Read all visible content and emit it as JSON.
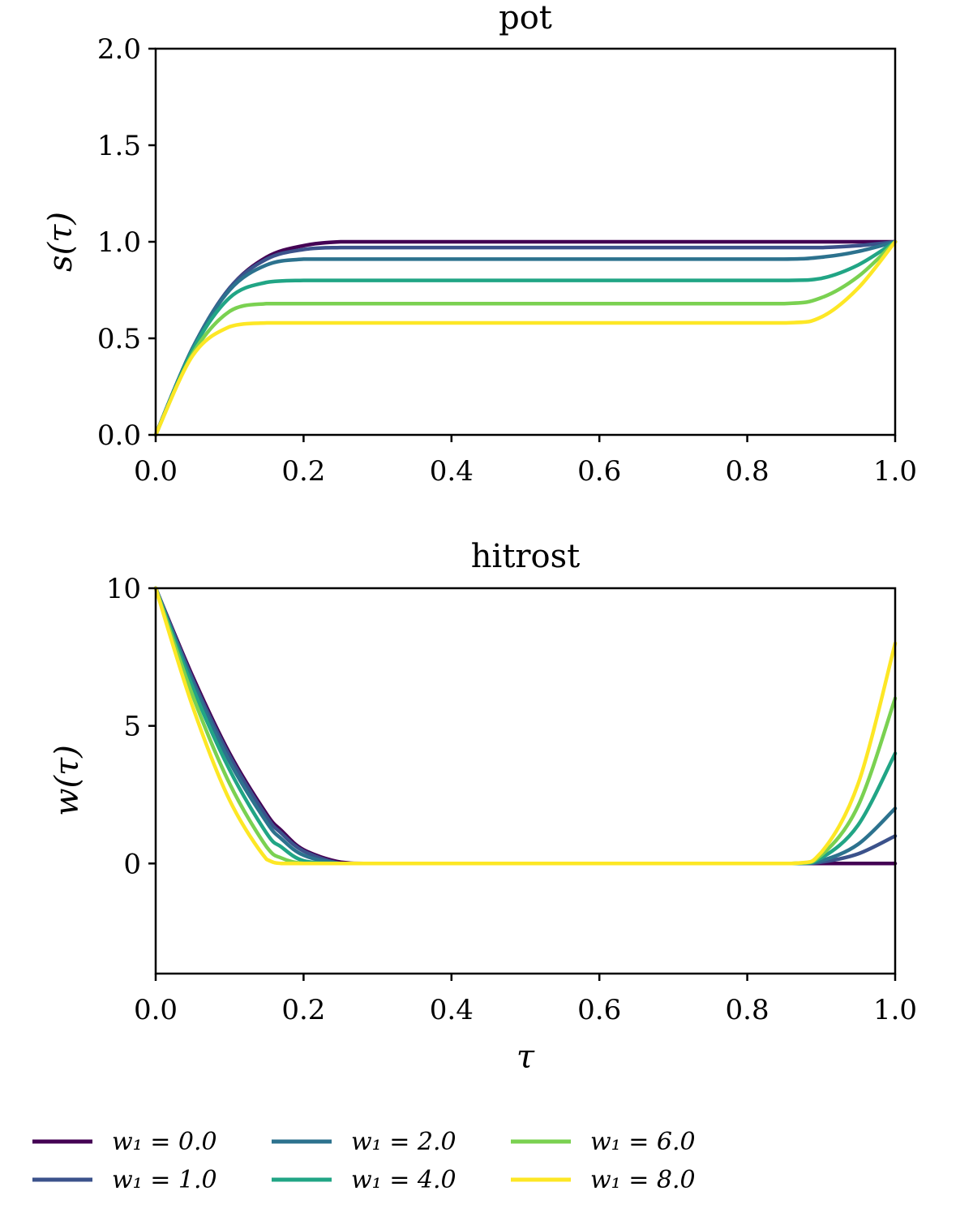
{
  "chart_data": [
    {
      "type": "line",
      "title": "pot",
      "xlabel": "",
      "ylabel": "s(τ)",
      "xlim": [
        0,
        1
      ],
      "ylim": [
        0,
        2
      ],
      "xticks": [
        "0.0",
        "0.2",
        "0.4",
        "0.6",
        "0.8",
        "1.0"
      ],
      "yticks": [
        "0.0",
        "0.5",
        "1.0",
        "1.5",
        "2.0"
      ],
      "x": [
        0.0,
        0.05,
        0.1,
        0.15,
        0.2,
        0.25,
        0.3,
        0.5,
        0.7,
        0.85,
        0.9,
        0.95,
        1.0
      ],
      "series": [
        {
          "name": "w₁ = 0.0",
          "color": "#440154",
          "values": [
            0.0,
            0.45,
            0.76,
            0.92,
            0.98,
            1.0,
            1.0,
            1.0,
            1.0,
            1.0,
            1.0,
            1.0,
            1.0
          ]
        },
        {
          "name": "w₁ = 1.0",
          "color": "#3b528b",
          "values": [
            0.0,
            0.45,
            0.76,
            0.91,
            0.96,
            0.97,
            0.97,
            0.97,
            0.97,
            0.97,
            0.97,
            0.98,
            1.0
          ]
        },
        {
          "name": "w₁ = 2.0",
          "color": "#2c728e",
          "values": [
            0.0,
            0.45,
            0.75,
            0.88,
            0.91,
            0.91,
            0.91,
            0.91,
            0.91,
            0.91,
            0.92,
            0.95,
            1.0
          ]
        },
        {
          "name": "w₁ = 4.0",
          "color": "#21a585",
          "values": [
            0.0,
            0.44,
            0.71,
            0.79,
            0.8,
            0.8,
            0.8,
            0.8,
            0.8,
            0.8,
            0.81,
            0.88,
            1.0
          ]
        },
        {
          "name": "w₁ = 6.0",
          "color": "#7ad151",
          "values": [
            0.0,
            0.42,
            0.64,
            0.68,
            0.68,
            0.68,
            0.68,
            0.68,
            0.68,
            0.68,
            0.71,
            0.82,
            1.0
          ]
        },
        {
          "name": "w₁ = 8.0",
          "color": "#fde725",
          "values": [
            0.0,
            0.41,
            0.56,
            0.58,
            0.58,
            0.58,
            0.58,
            0.58,
            0.58,
            0.58,
            0.61,
            0.76,
            1.0
          ]
        }
      ]
    },
    {
      "type": "line",
      "title": "hitrost",
      "xlabel": "τ",
      "ylabel": "w(τ)",
      "xlim": [
        0,
        1
      ],
      "ylim": [
        -4,
        10
      ],
      "xticks": [
        "0.0",
        "0.2",
        "0.4",
        "0.6",
        "0.8",
        "1.0"
      ],
      "yticks": [
        "0",
        "5",
        "10"
      ],
      "x": [
        0.0,
        0.05,
        0.1,
        0.15,
        0.17,
        0.2,
        0.25,
        0.3,
        0.5,
        0.7,
        0.86,
        0.9,
        0.95,
        1.0
      ],
      "series": [
        {
          "name": "w₁ = 0.0",
          "color": "#440154",
          "values": [
            10.0,
            6.8,
            4.0,
            1.8,
            1.2,
            0.5,
            0.05,
            0.0,
            0.0,
            0.0,
            0.0,
            0.0,
            0.0,
            0.0
          ]
        },
        {
          "name": "w₁ = 1.0",
          "color": "#3b528b",
          "values": [
            10.0,
            6.7,
            3.9,
            1.7,
            1.1,
            0.45,
            0.0,
            0.0,
            0.0,
            0.0,
            0.0,
            0.05,
            0.35,
            1.0
          ]
        },
        {
          "name": "w₁ = 2.0",
          "color": "#2c728e",
          "values": [
            10.0,
            6.6,
            3.7,
            1.5,
            0.9,
            0.3,
            0.0,
            0.0,
            0.0,
            0.0,
            0.0,
            0.1,
            0.7,
            2.0
          ]
        },
        {
          "name": "w₁ = 4.0",
          "color": "#21a585",
          "values": [
            10.0,
            6.4,
            3.4,
            1.1,
            0.6,
            0.1,
            0.0,
            0.0,
            0.0,
            0.0,
            0.0,
            0.2,
            1.4,
            4.0
          ]
        },
        {
          "name": "w₁ = 6.0",
          "color": "#7ad151",
          "values": [
            10.0,
            6.1,
            2.9,
            0.6,
            0.2,
            0.0,
            0.0,
            0.0,
            0.0,
            0.0,
            0.0,
            0.3,
            2.1,
            6.0
          ]
        },
        {
          "name": "w₁ = 8.0",
          "color": "#fde725",
          "values": [
            10.0,
            5.7,
            2.3,
            0.15,
            0.0,
            0.0,
            0.0,
            0.0,
            0.0,
            0.0,
            0.0,
            0.4,
            2.9,
            8.0
          ]
        }
      ]
    }
  ],
  "legend": {
    "placement": "bottom",
    "entries": [
      {
        "label": "w₁ = 0.0",
        "color": "#440154"
      },
      {
        "label": "w₁ = 1.0",
        "color": "#3b528b"
      },
      {
        "label": "w₁ = 2.0",
        "color": "#2c728e"
      },
      {
        "label": "w₁ = 4.0",
        "color": "#21a585"
      },
      {
        "label": "w₁ = 6.0",
        "color": "#7ad151"
      },
      {
        "label": "w₁ = 8.0",
        "color": "#fde725"
      }
    ]
  }
}
